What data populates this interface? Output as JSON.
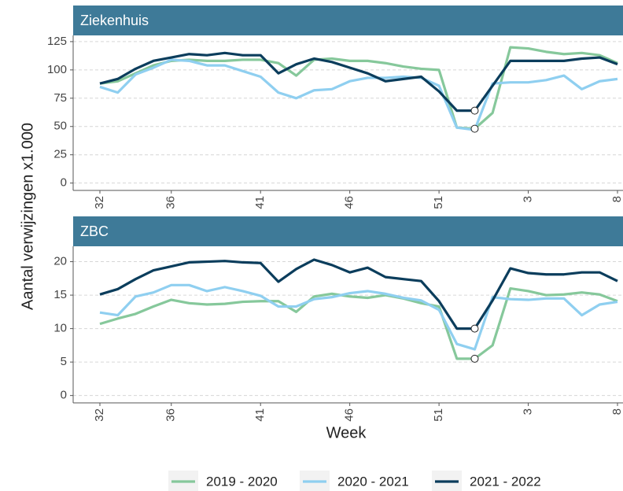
{
  "chart_data": [
    {
      "type": "line",
      "title": "Ziekenhuis",
      "y_label": "Aantal verwijzingen x1.000",
      "categories": [
        "32",
        null,
        null,
        null,
        "36",
        null,
        null,
        null,
        null,
        "41",
        null,
        null,
        null,
        null,
        "46",
        null,
        null,
        null,
        null,
        "51",
        null,
        null,
        null,
        null,
        "3",
        null,
        null,
        null,
        null,
        "8"
      ],
      "ylim": [
        -6.5,
        130.5
      ],
      "yticks": [
        0,
        25,
        50,
        75,
        100,
        125
      ],
      "grid": true,
      "series": [
        {
          "name": "2019 - 2020",
          "color": "#86c89b",
          "marker": true,
          "values": [
            88,
            90,
            97,
            104,
            108,
            109,
            108,
            108,
            109,
            109,
            106,
            95,
            109,
            110,
            108,
            108,
            106,
            103,
            101,
            100,
            49,
            48,
            62,
            120,
            119,
            116,
            114,
            115,
            113,
            106
          ]
        },
        {
          "name": "2020 - 2021",
          "color": "#8fcff0",
          "marker": false,
          "values": [
            85,
            80,
            96,
            102,
            109,
            108,
            104,
            104,
            99,
            94,
            80,
            75,
            82,
            83,
            90,
            93,
            93,
            94,
            93,
            86,
            49,
            47,
            88,
            89,
            89,
            91,
            95,
            83,
            90,
            92
          ]
        },
        {
          "name": "2021 - 2022",
          "color": "#0b3d5c",
          "marker": true,
          "values": [
            88,
            92,
            101,
            108,
            111,
            114,
            113,
            115,
            113,
            113,
            97,
            105,
            110,
            107,
            102,
            97,
            90,
            92,
            94,
            81,
            64,
            64,
            86,
            108,
            108,
            108,
            108,
            110,
            111,
            105
          ]
        }
      ]
    },
    {
      "type": "line",
      "title": "ZBC",
      "x_label": "Week",
      "categories": [
        "32",
        null,
        null,
        null,
        "36",
        null,
        null,
        null,
        null,
        "41",
        null,
        null,
        null,
        null,
        "46",
        null,
        null,
        null,
        null,
        "51",
        null,
        null,
        null,
        null,
        "3",
        null,
        null,
        null,
        null,
        "8"
      ],
      "ylim": [
        -1.1,
        22.3
      ],
      "yticks": [
        0,
        5,
        10,
        15,
        20
      ],
      "grid": true,
      "series": [
        {
          "name": "2019 - 2020",
          "color": "#86c89b",
          "marker": true,
          "values": [
            10.7,
            11.5,
            12.2,
            13.3,
            14.3,
            13.8,
            13.6,
            13.7,
            14.0,
            14.1,
            14.1,
            12.5,
            14.8,
            15.2,
            14.8,
            14.6,
            15.0,
            14.5,
            13.8,
            13.3,
            5.5,
            5.5,
            7.5,
            16.0,
            15.6,
            15.0,
            15.1,
            15.4,
            15.1,
            14.1
          ]
        },
        {
          "name": "2020 - 2021",
          "color": "#8fcff0",
          "marker": false,
          "values": [
            12.4,
            12.0,
            14.8,
            15.4,
            16.5,
            16.5,
            15.6,
            16.2,
            15.6,
            14.9,
            13.3,
            13.3,
            14.4,
            14.7,
            15.3,
            15.6,
            15.2,
            14.6,
            14.2,
            12.8,
            7.7,
            6.9,
            14.7,
            14.4,
            14.3,
            14.5,
            14.5,
            12.0,
            13.6,
            14.0
          ]
        },
        {
          "name": "2021 - 2022",
          "color": "#0b3d5c",
          "marker": true,
          "values": [
            15.1,
            15.9,
            17.4,
            18.7,
            19.3,
            19.9,
            20.0,
            20.1,
            19.9,
            19.8,
            17.0,
            18.9,
            20.3,
            19.5,
            18.4,
            19.1,
            17.7,
            17.4,
            17.1,
            14.1,
            10.0,
            10.0,
            14.2,
            19.0,
            18.3,
            18.1,
            18.1,
            18.4,
            18.4,
            17.1
          ]
        }
      ]
    }
  ]
}
